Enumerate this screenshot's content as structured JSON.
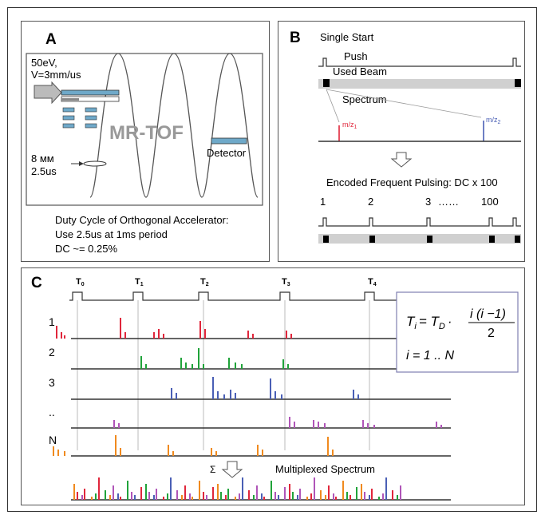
{
  "panel_a": {
    "letter": "A",
    "energy": "50eV,",
    "velocity": "V=3mm/us",
    "mrtof": "MR-TOF",
    "detector": "Detector",
    "size": "8 мм",
    "time": "2.5us",
    "caption_line1": "Duty Cycle of Orthogonal Accelerator:",
    "caption_line2": "Use 2.5us at 1ms period",
    "caption_line3": "DC ~= 0.25%"
  },
  "panel_b": {
    "letter": "B",
    "single_start": "Single Start",
    "push": "Push",
    "used_beam": "Used Beam",
    "spectrum": "Spectrum",
    "mz1": "m/z",
    "mz1_sub": "1",
    "mz2": "m/z",
    "mz2_sub": "2",
    "encoded": "Encoded Frequent Pulsing: DC x 100",
    "pulse_labels": [
      "1",
      "2",
      "3",
      "……",
      "100"
    ]
  },
  "panel_c": {
    "letter": "C",
    "t_labels": [
      "T",
      "T",
      "T",
      "T",
      "T"
    ],
    "t_subs": [
      "0",
      "1",
      "2",
      "3",
      "4"
    ],
    "row_labels": [
      "1",
      "2",
      "3",
      "..",
      "N"
    ],
    "sigma": "Σ",
    "multiplexed": "Multiplexed Spectrum",
    "formula_lhs": "T",
    "formula_lhs_sub": "i",
    "formula_eq": "= T",
    "formula_td_sub": "D",
    "formula_dot": "·",
    "formula_num": "i (i −1)",
    "formula_den": "2",
    "formula_range": "i = 1 .. N"
  },
  "colors": {
    "red": "#e0263b",
    "green": "#20a33a",
    "blue": "#4a5fb5",
    "magenta": "#b055b8",
    "orange": "#f08a1e",
    "grey_band": "#cfcfcf",
    "formula_border": "#7f7fb0"
  }
}
